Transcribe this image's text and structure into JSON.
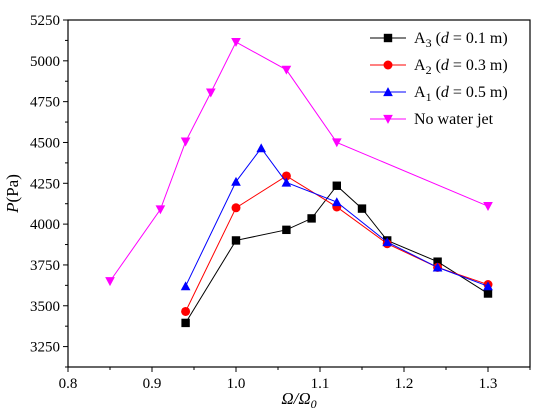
{
  "chart_data": {
    "type": "line",
    "xlabel": "Ω/Ω",
    "xlabel_sub": "0",
    "ylabel": "P",
    "ylabel_unit": "(Pa)",
    "xlim": [
      0.8,
      1.35
    ],
    "ylim": [
      3125,
      5250
    ],
    "x_ticks": [
      0.8,
      0.9,
      1.0,
      1.1,
      1.2,
      1.3
    ],
    "x_tick_labels": [
      "0.8",
      "0.9",
      "1.0",
      "1.1",
      "1.2",
      "1.3"
    ],
    "y_ticks": [
      3250,
      3500,
      3750,
      4000,
      4250,
      4500,
      4750,
      5000,
      5250
    ],
    "y_tick_labels": [
      "3250",
      "3500",
      "3750",
      "4000",
      "4250",
      "4500",
      "4750",
      "5000",
      "5250"
    ],
    "grid": false,
    "legend_position": "top-right",
    "series": [
      {
        "name": "A",
        "name_sub": "3",
        "name_suffix": " (d = 0.1 m)",
        "color": "#000000",
        "marker": "square",
        "x": [
          0.94,
          1.0,
          1.06,
          1.09,
          1.12,
          1.15,
          1.18,
          1.24,
          1.3
        ],
        "y": [
          3395,
          3900,
          3965,
          4035,
          4235,
          4095,
          3900,
          3770,
          3575
        ]
      },
      {
        "name": "A",
        "name_sub": "2",
        "name_suffix": " (d = 0.3 m)",
        "color": "#ff0000",
        "marker": "circle",
        "x": [
          0.94,
          1.0,
          1.06,
          1.12,
          1.18,
          1.24,
          1.3
        ],
        "y": [
          3465,
          4100,
          4295,
          4105,
          3880,
          3735,
          3630
        ]
      },
      {
        "name": "A",
        "name_sub": "1",
        "name_suffix": " (d = 0.5 m)",
        "color": "#0000ff",
        "marker": "triangle",
        "x": [
          0.94,
          1.0,
          1.03,
          1.06,
          1.12,
          1.18,
          1.24,
          1.3
        ],
        "y": [
          3620,
          4260,
          4465,
          4255,
          4135,
          3890,
          3735,
          3620
        ]
      },
      {
        "name": "No water jet",
        "name_sub": "",
        "name_suffix": "",
        "color": "#ff00ff",
        "marker": "triangle-down",
        "x": [
          0.85,
          0.91,
          0.94,
          0.97,
          1.0,
          1.06,
          1.12,
          1.3
        ],
        "y": [
          3650,
          4090,
          4505,
          4805,
          5115,
          4945,
          4500,
          4110
        ]
      }
    ]
  }
}
